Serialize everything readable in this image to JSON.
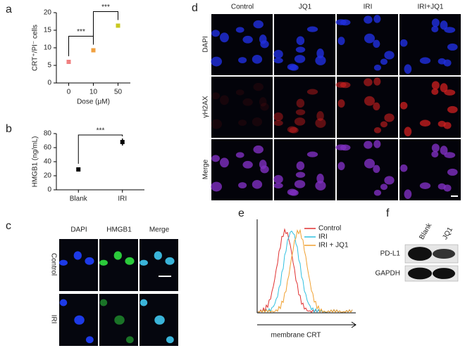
{
  "figure": {
    "labels": [
      "a",
      "b",
      "c",
      "d",
      "e",
      "f"
    ]
  },
  "chart_data": [
    {
      "type": "scatter",
      "categories": [
        "0",
        "10",
        "50"
      ],
      "values": [
        6,
        9.3,
        16.3
      ],
      "errors": [
        0.3,
        0.6,
        0.6
      ],
      "colors": [
        "#f08080",
        "#f0a040",
        "#c8c820"
      ],
      "ylim": [
        0,
        20
      ],
      "yticks": [
        0,
        5,
        10,
        15,
        20
      ],
      "ylabel": "CRT⁺/PI⁻ cells",
      "xlabel": "Dose (μM)",
      "annotations": [
        "***",
        "***"
      ]
    },
    {
      "type": "scatter",
      "categories": [
        "Blank",
        "IRI"
      ],
      "values": [
        29,
        68
      ],
      "errors": [
        1.5,
        5
      ],
      "colors": [
        "#000000",
        "#000000"
      ],
      "ylim": [
        0,
        80
      ],
      "yticks": [
        0,
        20,
        40,
        60,
        80
      ],
      "ylabel": "HMGB1 (ng/mL)",
      "annotations": [
        "***"
      ]
    }
  ],
  "panel_c": {
    "columns": [
      "DAPI",
      "HMGB1",
      "Merge"
    ],
    "rows": [
      "Control",
      "IRI"
    ]
  },
  "panel_d": {
    "columns": [
      "Control",
      "JQ1",
      "IRI",
      "IRI+JQ1"
    ],
    "rows": [
      "DAPI",
      "γH2AX",
      "Merge"
    ]
  },
  "panel_e": {
    "series": [
      {
        "name": "Control",
        "color": "#e03030"
      },
      {
        "name": "IRI",
        "color": "#30c0e0"
      },
      {
        "name": "IRI + JQ1",
        "color": "#f0a030"
      }
    ],
    "xlabel": "membrane CRT"
  },
  "panel_f": {
    "lanes": [
      "Blank",
      "JQ1"
    ],
    "proteins": [
      "PD-L1",
      "GAPDH"
    ]
  }
}
